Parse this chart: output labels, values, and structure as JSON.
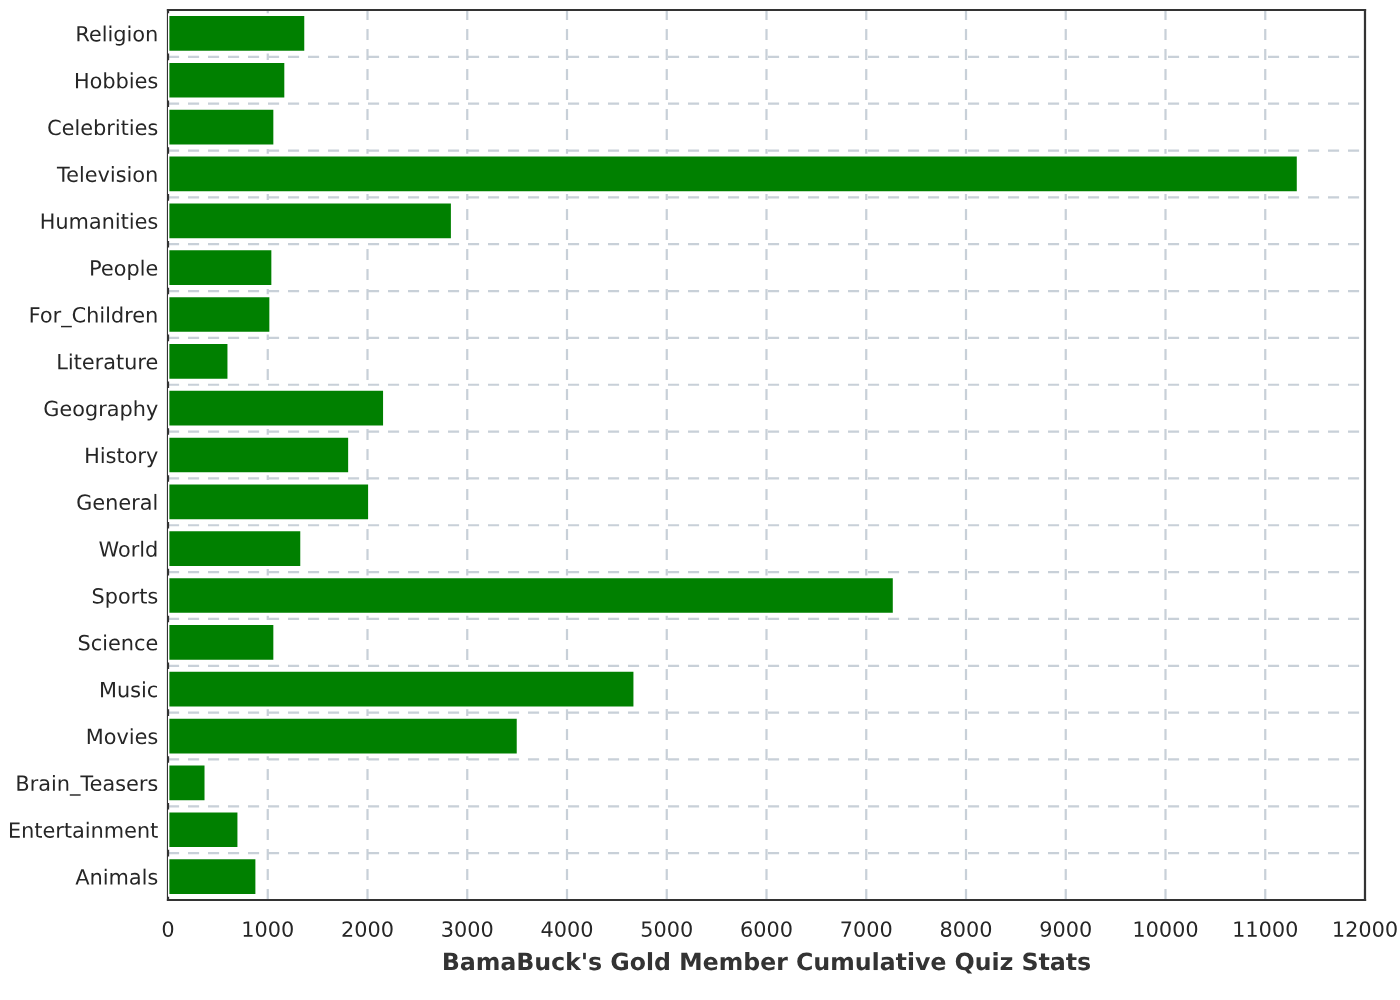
{
  "chart_data": {
    "type": "bar",
    "orientation": "horizontal",
    "xlabel": "BamaBuck's Gold Member Cumulative Quiz Stats",
    "categories": [
      "Religion",
      "Hobbies",
      "Celebrities",
      "Television",
      "Humanities",
      "People",
      "For_Children",
      "Literature",
      "Geography",
      "History",
      "General",
      "World",
      "Sports",
      "Science",
      "Music",
      "Movies",
      "Brain_Teasers",
      "Entertainment",
      "Animals"
    ],
    "values": [
      1380,
      1180,
      1070,
      11330,
      2850,
      1050,
      1030,
      610,
      2170,
      1820,
      2020,
      1340,
      7280,
      1070,
      4680,
      3510,
      380,
      710,
      890
    ],
    "color": "#008000",
    "xlim": [
      0,
      12000
    ],
    "xticks": [
      0,
      1000,
      2000,
      3000,
      4000,
      5000,
      6000,
      7000,
      8000,
      9000,
      10000,
      11000,
      12000
    ],
    "grid": true
  }
}
